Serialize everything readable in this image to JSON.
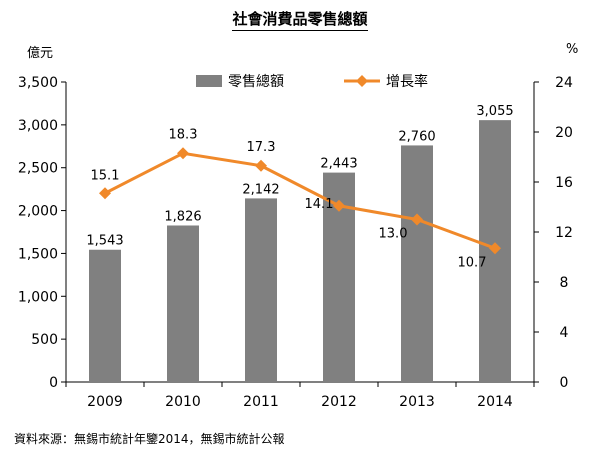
{
  "title": "社會消費品零售總額",
  "y_left_unit": "億元",
  "y_right_unit": "%",
  "source": "資料來源：無錫市統計年鑒2014，無錫市統計公報",
  "colors": {
    "bar": "#808080",
    "line": "#f0892a",
    "axis": "#000000"
  },
  "chart_data": {
    "type": "bar",
    "categories": [
      "2009",
      "2010",
      "2011",
      "2012",
      "2013",
      "2014"
    ],
    "series": [
      {
        "name": "零售總額",
        "type": "bar",
        "axis": "left",
        "values": [
          1543,
          1826,
          2142,
          2443,
          2760,
          3055
        ],
        "labels": [
          "1,543",
          "1,826",
          "2,142",
          "2,443",
          "2,760",
          "3,055"
        ]
      },
      {
        "name": "增長率",
        "type": "line",
        "axis": "right",
        "values": [
          15.1,
          18.3,
          17.3,
          14.1,
          13.0,
          10.7
        ],
        "labels": [
          "15.1",
          "18.3",
          "17.3",
          "14.1",
          "13.0",
          "10.7"
        ]
      }
    ],
    "y_left": {
      "min": 0,
      "max": 3500,
      "ticks": [
        "0",
        "500",
        "1,000",
        "1,500",
        "2,000",
        "2,500",
        "3,000",
        "3,500"
      ]
    },
    "y_right": {
      "min": 0,
      "max": 24,
      "ticks": [
        "0",
        "4",
        "8",
        "12",
        "16",
        "20",
        "24"
      ]
    },
    "legend_position": "top-center",
    "grid": false
  }
}
